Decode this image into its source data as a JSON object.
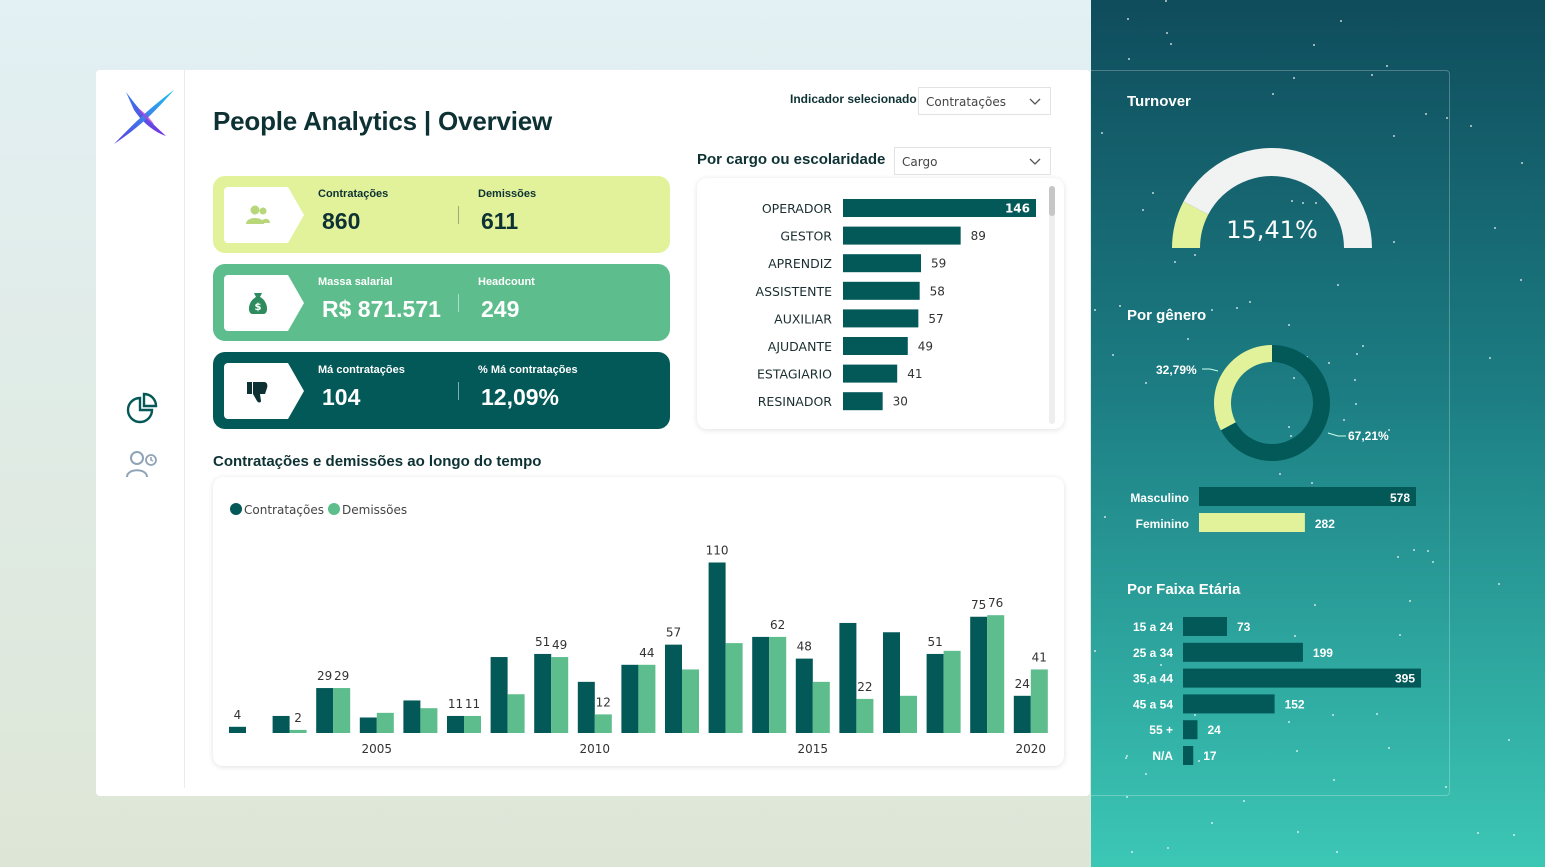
{
  "header": {
    "title": "People Analytics | Overview",
    "indicator_label": "Indicador selecionado",
    "indicator_value": "Contratações"
  },
  "kpis": [
    {
      "label_a": "Contratações",
      "value_a": "860",
      "label_b": "Demissões",
      "value_b": "611",
      "icon": "people-icon",
      "bg": "#e2f29a",
      "fg": "#0e3234"
    },
    {
      "label_a": "Massa salarial",
      "value_a": "R$ 871.571",
      "label_b": "Headcount",
      "value_b": "249",
      "icon": "money-bag-icon",
      "bg": "#5dbd8c",
      "fg": "#ffffff"
    },
    {
      "label_a": "Má contratações",
      "value_a": "104",
      "label_b": "% Má contratações",
      "value_b": "12,09%",
      "icon": "thumbs-down-icon",
      "bg": "#035858",
      "fg": "#ffffff"
    }
  ],
  "cargo": {
    "title": "Por cargo ou escolaridade",
    "dropdown_value": "Cargo",
    "chart_data": {
      "type": "bar",
      "orientation": "horizontal",
      "categories": [
        "OPERADOR",
        "GESTOR",
        "APRENDIZ",
        "ASSISTENTE",
        "AUXILIAR",
        "AJUDANTE",
        "ESTAGIARIO",
        "RESINADOR"
      ],
      "values": [
        146,
        89,
        59,
        58,
        57,
        49,
        41,
        30
      ],
      "color": "#035858"
    }
  },
  "timeline": {
    "title": "Contratações e demissões ao longo do tempo",
    "chart_data": {
      "type": "bar",
      "x": [
        2002,
        2003,
        2004,
        2005,
        2006,
        2007,
        2008,
        2009,
        2010,
        2011,
        2012,
        2013,
        2014,
        2015,
        2016,
        2017,
        2018,
        2019,
        2020
      ],
      "series": [
        {
          "name": "Contratações",
          "color": "#035858",
          "values": [
            4,
            11,
            29,
            10,
            21,
            11,
            49,
            51,
            33,
            44,
            57,
            110,
            62,
            48,
            71,
            65,
            51,
            75,
            24
          ]
        },
        {
          "name": "Demissões",
          "color": "#5dbd8c",
          "values": [
            0,
            2,
            29,
            13,
            16,
            11,
            25,
            49,
            12,
            44,
            41,
            58,
            62,
            33,
            22,
            24,
            53,
            76,
            41
          ]
        }
      ],
      "labels_a": [
        "4",
        "",
        "29",
        "",
        "",
        "11",
        "",
        "51",
        "",
        "",
        "57",
        "110",
        "",
        "48",
        "",
        "",
        "51",
        "75",
        "24"
      ],
      "labels_b": [
        "",
        "2",
        "29",
        "",
        "",
        "11",
        "",
        "49",
        "12",
        "44",
        "",
        "",
        "62",
        "",
        "22",
        "",
        "",
        "76",
        "41"
      ],
      "tick_labels": [
        {
          "x": 2005,
          "label": "2005"
        },
        {
          "x": 2010,
          "label": "2010"
        },
        {
          "x": 2015,
          "label": "2015"
        },
        {
          "x": 2020,
          "label": "2020"
        }
      ],
      "legend": "top-left",
      "ylim": [
        0,
        120
      ]
    }
  },
  "right": {
    "turnover": {
      "title": "Turnover",
      "value_label": "15,41%",
      "value": 15.41,
      "fill_color": "#e2f29a",
      "track_color": "#f1f2f2"
    },
    "genero": {
      "title": "Por gênero",
      "chart_data": {
        "type": "pie",
        "labels": [
          "Masculino",
          "Feminino"
        ],
        "values": [
          67.21,
          32.79
        ],
        "value_labels": [
          "67,21%",
          "32,79%"
        ],
        "colors": [
          "#035858",
          "#e2f29a"
        ]
      },
      "bars": [
        {
          "label": "Masculino",
          "value": 578,
          "color": "#035858",
          "text_color": "#ffffff"
        },
        {
          "label": "Feminino",
          "value": 282,
          "color": "#e2f29a",
          "text_color": "#ffffff"
        }
      ]
    },
    "faixa": {
      "title": "Por Faixa Etária",
      "chart_data": {
        "type": "bar",
        "orientation": "horizontal",
        "categories": [
          "15 a 24",
          "25 a 34",
          "35 a 44",
          "45 a 54",
          "55 +",
          "N/A"
        ],
        "values": [
          73,
          199,
          395,
          152,
          24,
          17
        ],
        "color": "#035858"
      }
    }
  }
}
